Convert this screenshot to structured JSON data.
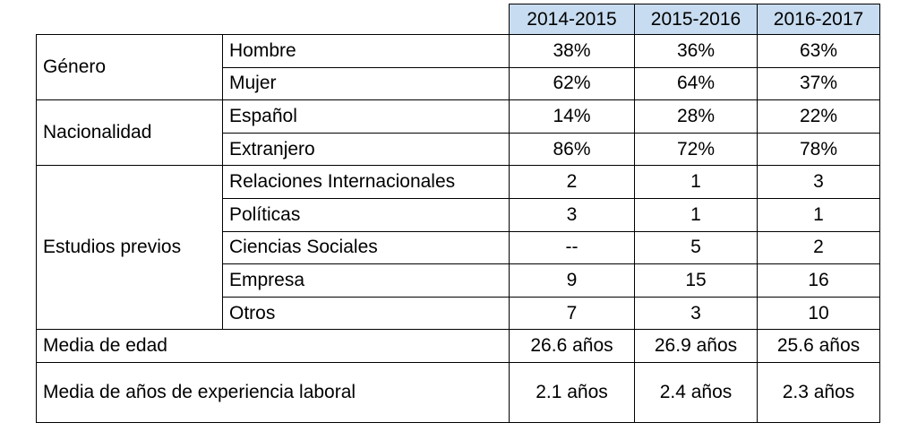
{
  "years": [
    "2014-2015",
    "2015-2016",
    "2016-2017"
  ],
  "groups": {
    "genero": {
      "label": "Género",
      "rows": [
        {
          "label": "Hombre",
          "values": [
            "38%",
            "36%",
            "63%"
          ]
        },
        {
          "label": "Mujer",
          "values": [
            "62%",
            "64%",
            "37%"
          ]
        }
      ]
    },
    "nacionalidad": {
      "label": "Nacionalidad",
      "rows": [
        {
          "label": "Español",
          "values": [
            "14%",
            "28%",
            "22%"
          ]
        },
        {
          "label": "Extranjero",
          "values": [
            "86%",
            "72%",
            "78%"
          ]
        }
      ]
    },
    "estudios": {
      "label": "Estudios previos",
      "rows": [
        {
          "label": "Relaciones Internacionales",
          "values": [
            "2",
            "1",
            "3"
          ]
        },
        {
          "label": "Políticas",
          "values": [
            "3",
            "1",
            "1"
          ]
        },
        {
          "label": "Ciencias Sociales",
          "values": [
            "--",
            "5",
            "2"
          ]
        },
        {
          "label": "Empresa",
          "values": [
            "9",
            "15",
            "16"
          ]
        },
        {
          "label": "Otros",
          "values": [
            "7",
            "3",
            "10"
          ]
        }
      ]
    }
  },
  "media_edad": {
    "label": "Media de edad",
    "values": [
      "26.6 años",
      "26.9 años",
      "25.6 años"
    ]
  },
  "media_experiencia": {
    "label": "Media de años de experiencia laboral",
    "values": [
      "2.1 años",
      "2.4 años",
      "2.3 años"
    ]
  }
}
